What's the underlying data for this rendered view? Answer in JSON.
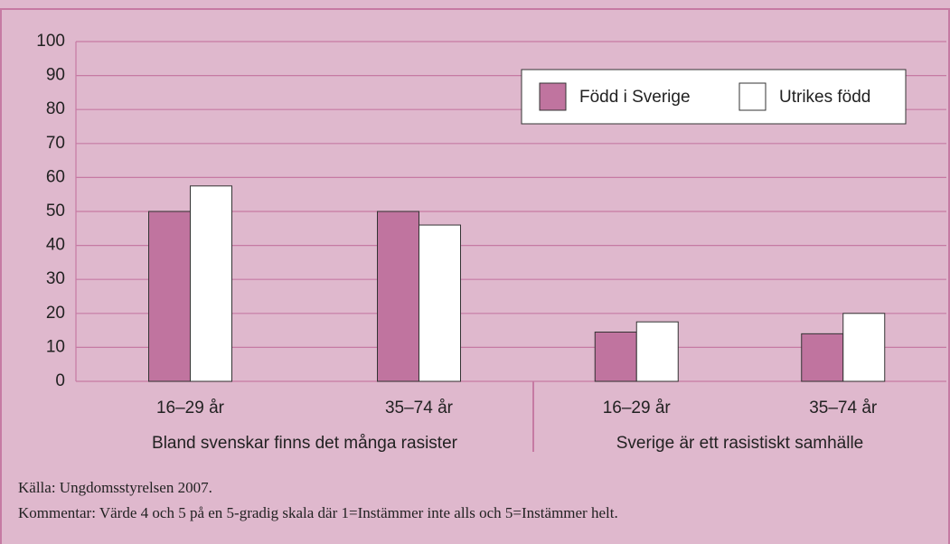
{
  "chart_data": {
    "type": "bar",
    "categories": [
      "16–29 år",
      "35–74 år",
      "16–29 år",
      "35–74 år"
    ],
    "groups": [
      "Bland svenskar finns det många rasister",
      "Sverige är ett rasistiskt samhälle"
    ],
    "series": [
      {
        "name": "Född i Sverige",
        "color": "#c0749f",
        "values": [
          50,
          50,
          14.5,
          14
        ]
      },
      {
        "name": "Utrikes född",
        "color": "#ffffff",
        "values": [
          57.5,
          46,
          17.5,
          20
        ]
      }
    ],
    "ylim": [
      0,
      100
    ],
    "yticks": [
      0,
      10,
      20,
      30,
      40,
      50,
      60,
      70,
      80,
      90,
      100
    ],
    "grid": true,
    "legend": "top-right",
    "notes": [
      "Källa: Ungdomsstyrelsen 2007.",
      "Kommentar: Värde 4 och 5 på en 5-gradig skala där 1=Instämmer inte alls och 5=Instämmer helt."
    ]
  }
}
